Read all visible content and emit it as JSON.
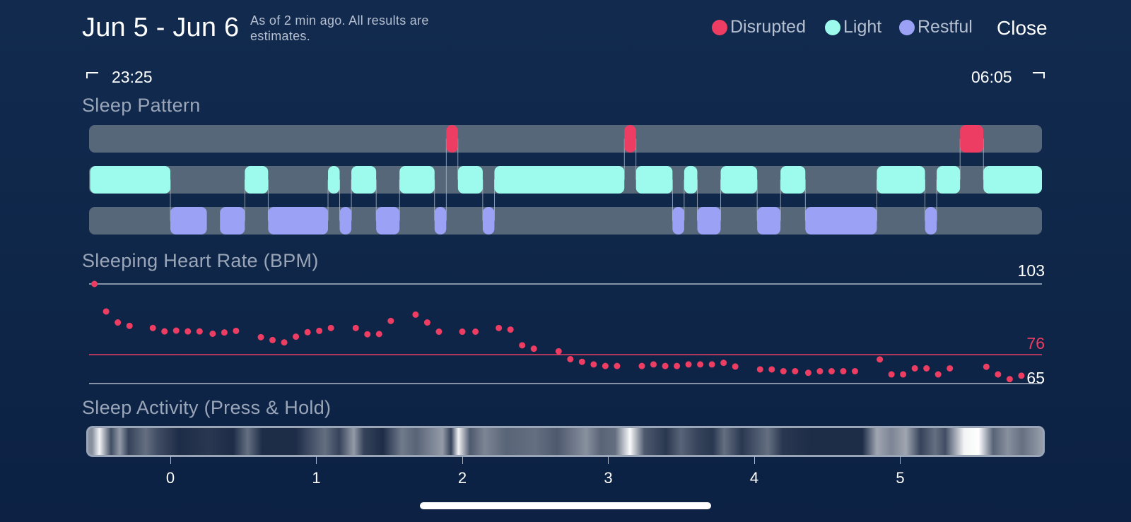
{
  "header": {
    "title": "Jun 5 - Jun 6",
    "subtitle": "As of 2 min ago. All results are estimates.",
    "close_label": "Close"
  },
  "legend": [
    {
      "label": "Disrupted",
      "color": "#ee3d63"
    },
    {
      "label": "Light",
      "color": "#9cfbec"
    },
    {
      "label": "Restful",
      "color": "#9ba2f6"
    }
  ],
  "time_range": {
    "start": "23:25",
    "end": "06:05"
  },
  "sleep_pattern": {
    "title": "Sleep Pattern",
    "track_color": "#566779",
    "segments": [
      {
        "stage": "light",
        "start": -0.55,
        "end": 0.0
      },
      {
        "stage": "restful",
        "start": 0.0,
        "end": 0.25
      },
      {
        "stage": "restful",
        "start": 0.34,
        "end": 0.51
      },
      {
        "stage": "light",
        "start": 0.51,
        "end": 0.67
      },
      {
        "stage": "restful",
        "start": 0.67,
        "end": 1.08
      },
      {
        "stage": "light",
        "start": 1.08,
        "end": 1.16
      },
      {
        "stage": "restful",
        "start": 1.16,
        "end": 1.24
      },
      {
        "stage": "light",
        "start": 1.24,
        "end": 1.41
      },
      {
        "stage": "restful",
        "start": 1.41,
        "end": 1.57
      },
      {
        "stage": "light",
        "start": 1.57,
        "end": 1.81
      },
      {
        "stage": "restful",
        "start": 1.81,
        "end": 1.89
      },
      {
        "stage": "disrupted",
        "start": 1.89,
        "end": 1.97
      },
      {
        "stage": "light",
        "start": 1.97,
        "end": 2.14
      },
      {
        "stage": "restful",
        "start": 2.14,
        "end": 2.22
      },
      {
        "stage": "light",
        "start": 2.22,
        "end": 3.11
      },
      {
        "stage": "disrupted",
        "start": 3.11,
        "end": 3.19
      },
      {
        "stage": "light",
        "start": 3.19,
        "end": 3.44
      },
      {
        "stage": "restful",
        "start": 3.44,
        "end": 3.52
      },
      {
        "stage": "light",
        "start": 3.52,
        "end": 3.61
      },
      {
        "stage": "restful",
        "start": 3.61,
        "end": 3.77
      },
      {
        "stage": "light",
        "start": 3.77,
        "end": 4.02
      },
      {
        "stage": "restful",
        "start": 4.02,
        "end": 4.18
      },
      {
        "stage": "light",
        "start": 4.18,
        "end": 4.35
      },
      {
        "stage": "restful",
        "start": 4.35,
        "end": 4.84
      },
      {
        "stage": "light",
        "start": 4.84,
        "end": 5.17
      },
      {
        "stage": "restful",
        "start": 5.17,
        "end": 5.25
      },
      {
        "stage": "light",
        "start": 5.25,
        "end": 5.41
      },
      {
        "stage": "disrupted",
        "start": 5.41,
        "end": 5.57
      },
      {
        "stage": "light",
        "start": 5.57,
        "end": 5.98
      }
    ]
  },
  "heart_rate": {
    "title": "Sleeping Heart Rate (BPM)",
    "max_label": "103",
    "avg_label": "76",
    "min_label": "65",
    "max": 103,
    "avg": 76,
    "min": 65,
    "color": "#ee3d63",
    "points": [
      [
        -0.52,
        103
      ],
      [
        -0.44,
        92.5
      ],
      [
        -0.36,
        88.3
      ],
      [
        -0.28,
        87
      ],
      [
        -0.12,
        86.2
      ],
      [
        -0.04,
        84.9
      ],
      [
        0.04,
        85.2
      ],
      [
        0.12,
        84.9
      ],
      [
        0.2,
        84.9
      ],
      [
        0.29,
        84
      ],
      [
        0.37,
        84.5
      ],
      [
        0.45,
        85.1
      ],
      [
        0.62,
        82.7
      ],
      [
        0.7,
        81.6
      ],
      [
        0.78,
        80.7
      ],
      [
        0.86,
        82.9
      ],
      [
        0.94,
        84.6
      ],
      [
        1.02,
        85.1
      ],
      [
        1.1,
        86.2
      ],
      [
        1.27,
        86.2
      ],
      [
        1.35,
        83.8
      ],
      [
        1.43,
        83.9
      ],
      [
        1.51,
        88.9
      ],
      [
        1.68,
        91.3
      ],
      [
        1.76,
        88.3
      ],
      [
        1.84,
        84.8
      ],
      [
        2.0,
        84.8
      ],
      [
        2.09,
        84.8
      ],
      [
        2.25,
        86.2
      ],
      [
        2.33,
        85.6
      ],
      [
        2.41,
        79.6
      ],
      [
        2.49,
        78.3
      ],
      [
        2.66,
        77.3
      ],
      [
        2.74,
        74.3
      ],
      [
        2.82,
        73.3
      ],
      [
        2.9,
        72.3
      ],
      [
        2.98,
        71.7
      ],
      [
        3.06,
        71.7
      ],
      [
        3.23,
        71.7
      ],
      [
        3.31,
        72.3
      ],
      [
        3.39,
        71.7
      ],
      [
        3.47,
        71.7
      ],
      [
        3.55,
        72.3
      ],
      [
        3.63,
        72.3
      ],
      [
        3.71,
        72.3
      ],
      [
        3.79,
        72.9
      ],
      [
        3.87,
        71.5
      ],
      [
        4.04,
        70.4
      ],
      [
        4.12,
        70.4
      ],
      [
        4.2,
        69.7
      ],
      [
        4.28,
        69.7
      ],
      [
        4.37,
        69.1
      ],
      [
        4.45,
        69.7
      ],
      [
        4.53,
        69.7
      ],
      [
        4.61,
        69.7
      ],
      [
        4.69,
        69.7
      ],
      [
        4.86,
        74.2
      ],
      [
        4.94,
        68.5
      ],
      [
        5.02,
        68.5
      ],
      [
        5.1,
        70.8
      ],
      [
        5.18,
        70.8
      ],
      [
        5.26,
        68.5
      ],
      [
        5.34,
        70.8
      ],
      [
        5.59,
        71.4
      ],
      [
        5.67,
        68.5
      ],
      [
        5.75,
        66.7
      ],
      [
        5.83,
        68
      ]
    ]
  },
  "sleep_activity": {
    "title": "Sleep Activity (Press & Hold)",
    "intensity": [
      {
        "pos": -0.55,
        "level": 0.5
      },
      {
        "pos": -0.5,
        "level": 0.95
      },
      {
        "pos": -0.42,
        "level": 0.2
      },
      {
        "pos": -0.36,
        "level": 0.55
      },
      {
        "pos": -0.3,
        "level": 0.15
      },
      {
        "pos": -0.18,
        "level": 0.35
      },
      {
        "pos": -0.1,
        "level": 0.2
      },
      {
        "pos": 0.05,
        "level": 0.05
      },
      {
        "pos": 0.25,
        "level": 0.1
      },
      {
        "pos": 0.42,
        "level": 0.05
      },
      {
        "pos": 0.52,
        "level": 0.35
      },
      {
        "pos": 0.62,
        "level": 0.05
      },
      {
        "pos": 0.85,
        "level": 0.05
      },
      {
        "pos": 1.05,
        "level": 0.35
      },
      {
        "pos": 1.15,
        "level": 0.15
      },
      {
        "pos": 1.25,
        "level": 0.55
      },
      {
        "pos": 1.32,
        "level": 0.15
      },
      {
        "pos": 1.45,
        "level": 0.05
      },
      {
        "pos": 1.58,
        "level": 0.4
      },
      {
        "pos": 1.68,
        "level": 0.3
      },
      {
        "pos": 1.86,
        "level": 0.55
      },
      {
        "pos": 1.92,
        "level": 0.15
      },
      {
        "pos": 1.97,
        "level": 0.95
      },
      {
        "pos": 2.05,
        "level": 0.25
      },
      {
        "pos": 2.15,
        "level": 0.45
      },
      {
        "pos": 2.3,
        "level": 0.3
      },
      {
        "pos": 2.5,
        "level": 0.35
      },
      {
        "pos": 2.65,
        "level": 0.25
      },
      {
        "pos": 2.85,
        "level": 0.5
      },
      {
        "pos": 2.95,
        "level": 0.3
      },
      {
        "pos": 3.05,
        "level": 0.35
      },
      {
        "pos": 3.15,
        "level": 0.98
      },
      {
        "pos": 3.25,
        "level": 0.25
      },
      {
        "pos": 3.4,
        "level": 0.1
      },
      {
        "pos": 3.5,
        "level": 0.3
      },
      {
        "pos": 3.62,
        "level": 0.15
      },
      {
        "pos": 3.72,
        "level": 0.1
      },
      {
        "pos": 3.8,
        "level": 0.35
      },
      {
        "pos": 3.92,
        "level": 0.1
      },
      {
        "pos": 4.1,
        "level": 0.35
      },
      {
        "pos": 4.2,
        "level": 0.1
      },
      {
        "pos": 4.4,
        "level": 0.05
      },
      {
        "pos": 4.75,
        "level": 0.05
      },
      {
        "pos": 4.85,
        "level": 0.6
      },
      {
        "pos": 4.95,
        "level": 0.45
      },
      {
        "pos": 5.05,
        "level": 0.6
      },
      {
        "pos": 5.15,
        "level": 0.15
      },
      {
        "pos": 5.25,
        "level": 0.35
      },
      {
        "pos": 5.32,
        "level": 0.2
      },
      {
        "pos": 5.45,
        "level": 0.95
      },
      {
        "pos": 5.55,
        "level": 1.0
      },
      {
        "pos": 5.65,
        "level": 0.3
      },
      {
        "pos": 5.75,
        "level": 0.5
      },
      {
        "pos": 5.85,
        "level": 0.35
      },
      {
        "pos": 5.98,
        "level": 0.55
      }
    ]
  },
  "axis": {
    "ticks": [
      "0",
      "1",
      "2",
      "3",
      "4",
      "5"
    ]
  }
}
